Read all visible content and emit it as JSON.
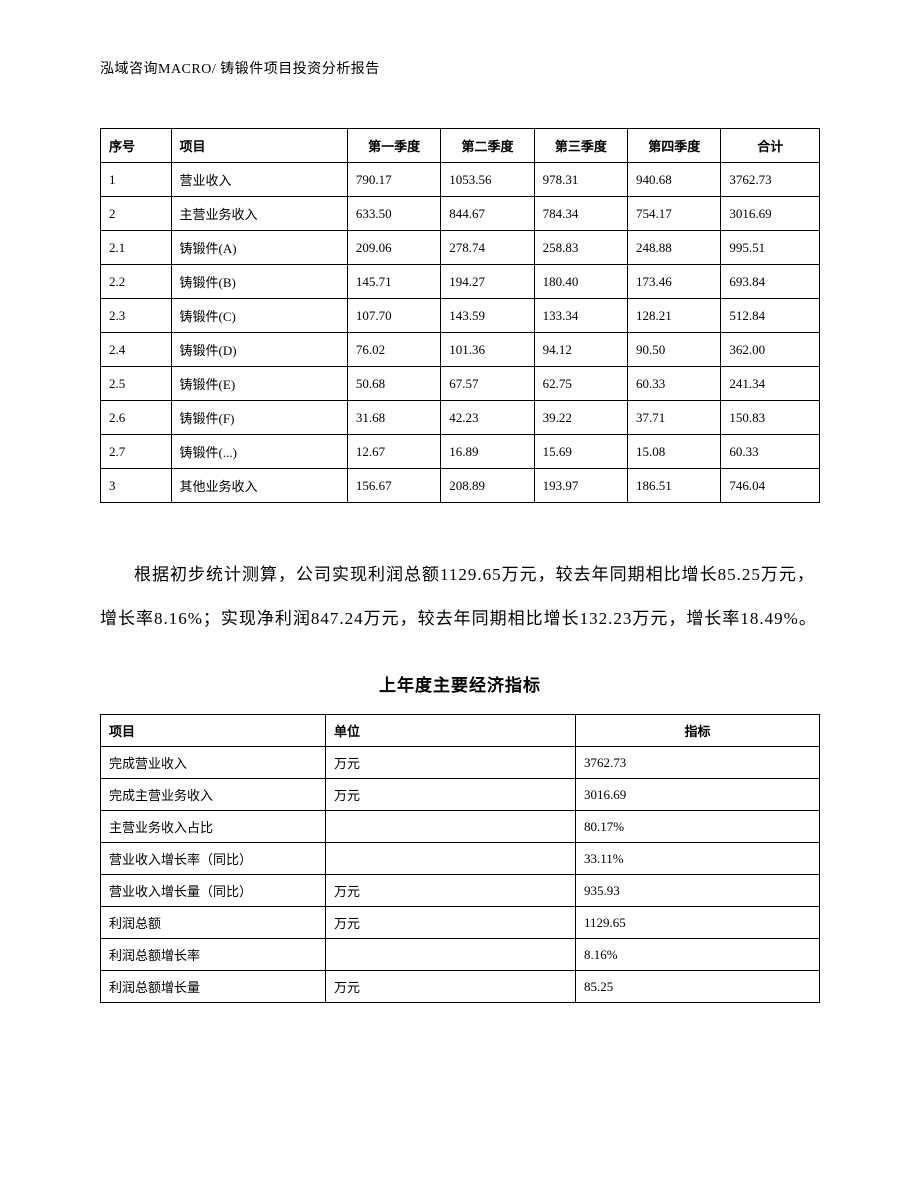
{
  "header": {
    "text": "泓域咨询MACRO/    铸锻件项目投资分析报告"
  },
  "quarterlyTable": {
    "columns": [
      "序号",
      "项目",
      "第一季度",
      "第二季度",
      "第三季度",
      "第四季度",
      "合计"
    ],
    "rows": [
      [
        "1",
        "营业收入",
        "790.17",
        "1053.56",
        "978.31",
        "940.68",
        "3762.73"
      ],
      [
        "2",
        "主营业务收入",
        "633.50",
        "844.67",
        "784.34",
        "754.17",
        "3016.69"
      ],
      [
        "2.1",
        "铸锻件(A)",
        "209.06",
        "278.74",
        "258.83",
        "248.88",
        "995.51"
      ],
      [
        "2.2",
        "铸锻件(B)",
        "145.71",
        "194.27",
        "180.40",
        "173.46",
        "693.84"
      ],
      [
        "2.3",
        "铸锻件(C)",
        "107.70",
        "143.59",
        "133.34",
        "128.21",
        "512.84"
      ],
      [
        "2.4",
        "铸锻件(D)",
        "76.02",
        "101.36",
        "94.12",
        "90.50",
        "362.00"
      ],
      [
        "2.5",
        "铸锻件(E)",
        "50.68",
        "67.57",
        "62.75",
        "60.33",
        "241.34"
      ],
      [
        "2.6",
        "铸锻件(F)",
        "31.68",
        "42.23",
        "39.22",
        "37.71",
        "150.83"
      ],
      [
        "2.7",
        "铸锻件(...)",
        "12.67",
        "16.89",
        "15.69",
        "15.08",
        "60.33"
      ],
      [
        "3",
        "其他业务收入",
        "156.67",
        "208.89",
        "193.97",
        "186.51",
        "746.04"
      ]
    ]
  },
  "paragraph": {
    "text": "根据初步统计测算，公司实现利润总额1129.65万元，较去年同期相比增长85.25万元，增长率8.16%；实现净利润847.24万元，较去年同期相比增长132.23万元，增长率18.49%。"
  },
  "sectionTitle": {
    "text": "上年度主要经济指标"
  },
  "indicatorTable": {
    "columns": [
      "项目",
      "单位",
      "指标"
    ],
    "rows": [
      [
        "完成营业收入",
        "万元",
        "3762.73"
      ],
      [
        "完成主营业务收入",
        "万元",
        "3016.69"
      ],
      [
        "主营业务收入占比",
        "",
        "80.17%"
      ],
      [
        "营业收入增长率（同比）",
        "",
        "33.11%"
      ],
      [
        "营业收入增长量（同比）",
        "万元",
        "935.93"
      ],
      [
        "利润总额",
        "万元",
        "1129.65"
      ],
      [
        "利润总额增长率",
        "",
        "8.16%"
      ],
      [
        "利润总额增长量",
        "万元",
        "85.25"
      ]
    ]
  }
}
